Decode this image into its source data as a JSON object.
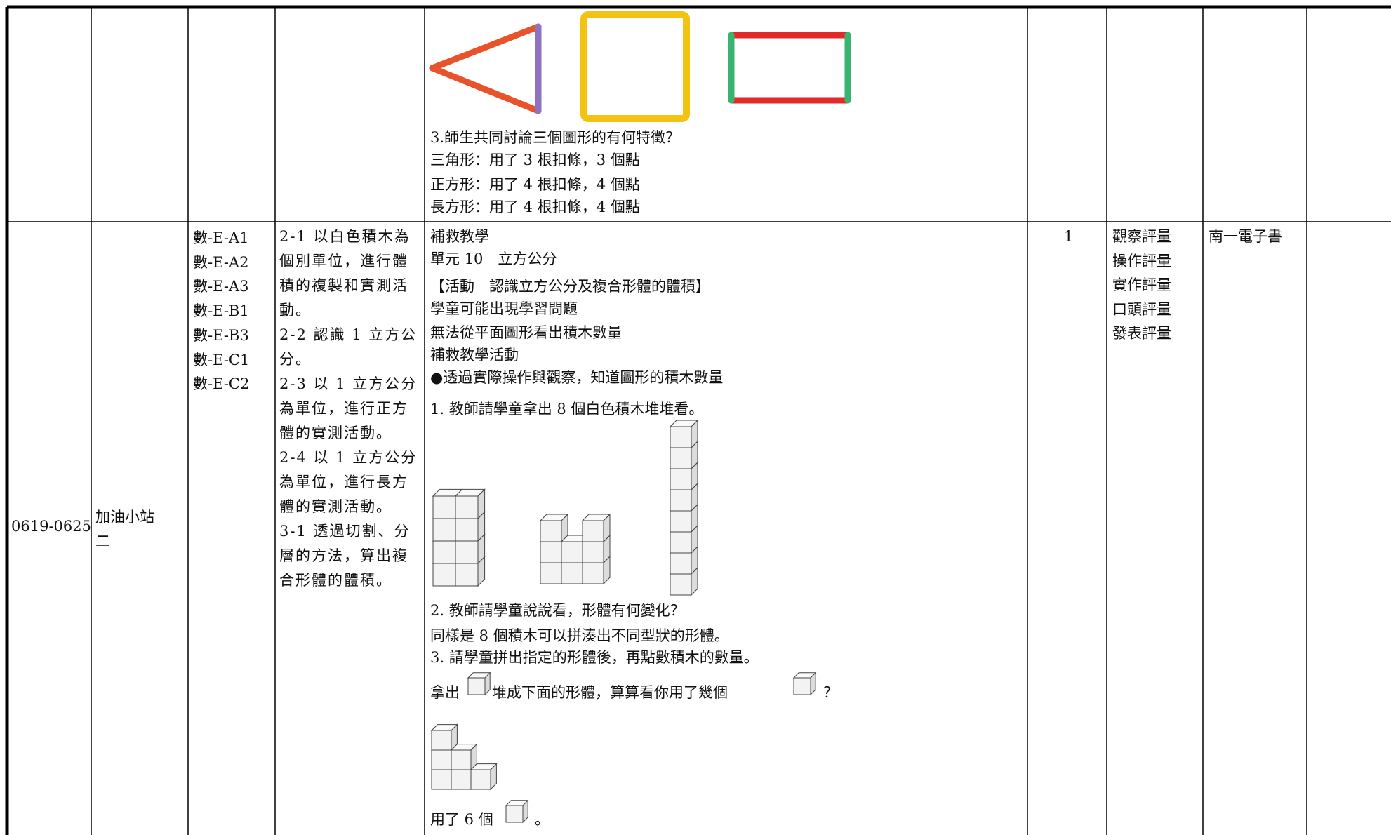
{
  "table": {
    "rows": [
      {
        "activity": [
          "3.師生共同討論三個圖形的有何特徵？",
          "三角形：用了 3 根扣條，3 個點",
          "正方形：用了 4 根扣條，4 個點",
          "長方形：用了 4 根扣條，4 個點"
        ]
      },
      {
        "week": "0619-0625",
        "unit": "加油小站二",
        "codes": [
          "數-E-A1",
          "數-E-A2",
          "數-E-A3",
          "數-E-B1",
          "數-E-B3",
          "數-E-C1",
          "數-E-C2"
        ],
        "objectives": [
          "2-1 以白色積木為個別單位，進行體積的複製和實測活動。",
          "2-2 認識 1 立方公分。",
          "2-3 以 1 立方公分為單位，進行正方體的實測活動。",
          "2-4 以 1 立方公分為單位，進行長方體的實測活動。",
          "3-1 透過切割、分層的方法，算出複合形體的體積。"
        ],
        "activity": [
          "補救教學",
          "單元 10　立方公分",
          "【活動　認識立方公分及複合形體的體積】",
          "學童可能出現學習問題",
          "無法從平面圖形看出積木數量",
          "補救教學活動",
          "●透過實際操作與觀察，知道圖形的積木數量",
          "1. 教師請學童拿出 8 個白色積木堆堆看。",
          "2. 教師請學童說說看，形體有何變化？",
          "同樣是 8 個積木可以拼湊出不同型狀的形體。",
          "3. 請學童拼出指定的形體後，再點數積木的數量。",
          "拿出",
          "堆成下面的形體，算算看你用了幾個",
          "？",
          "用了 6 個",
          "。"
        ],
        "hours": "1",
        "assessment": [
          "觀察評量",
          "操作評量",
          "實作評量",
          "口頭評量",
          "發表評量"
        ],
        "resources": "南一電子書"
      }
    ]
  }
}
